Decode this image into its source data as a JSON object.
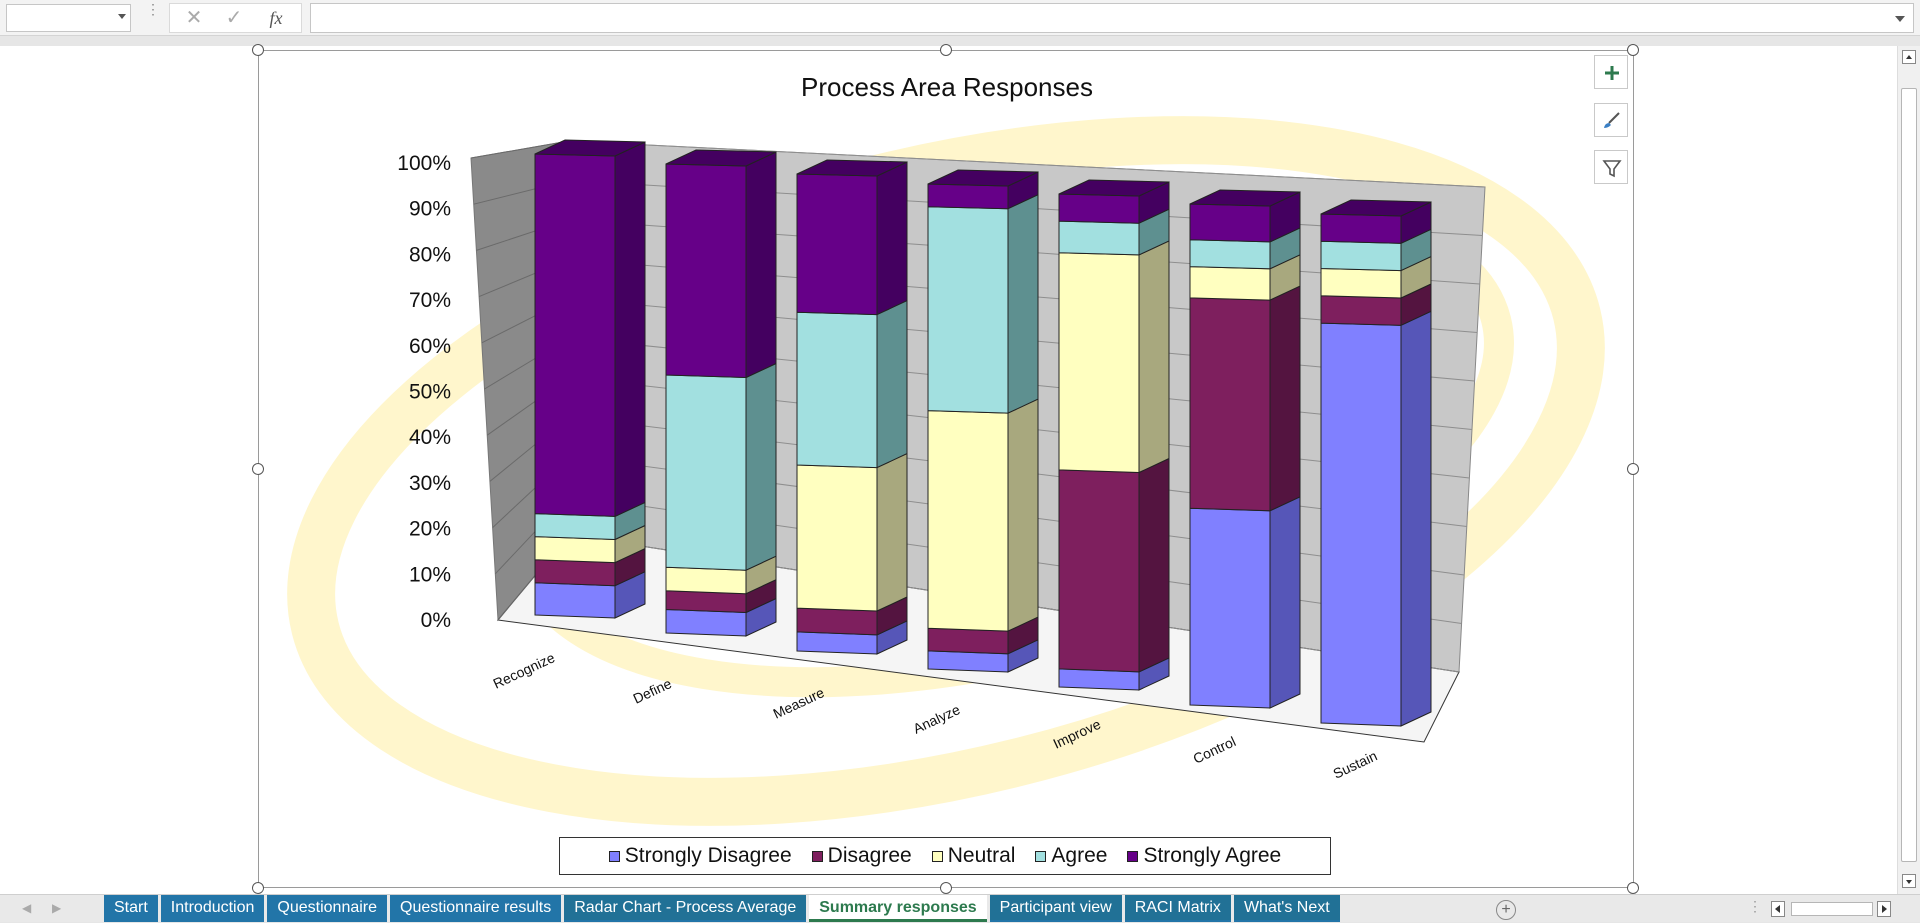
{
  "formula_bar": {
    "name_box_value": "",
    "cancel_icon": "close-icon",
    "enter_icon": "check-icon",
    "fx_label": "fx",
    "formula_value": ""
  },
  "chart_data": {
    "type": "bar",
    "stacked": "percent",
    "style": "3d-column",
    "title": "Process Area Responses",
    "xlabel": "",
    "ylabel": "",
    "ylim": [
      0,
      100
    ],
    "y_ticks": [
      "0%",
      "10%",
      "20%",
      "30%",
      "40%",
      "50%",
      "60%",
      "70%",
      "80%",
      "90%",
      "100%"
    ],
    "categories": [
      "Recognize",
      "Define",
      "Measure",
      "Analyze",
      "Improve",
      "Control",
      "Sustain"
    ],
    "series": [
      {
        "name": "Strongly Disagree",
        "color": "#8080FF",
        "side_color": "#5656B8",
        "values": [
          7,
          5,
          4,
          4,
          4,
          44,
          88
        ]
      },
      {
        "name": "Disagree",
        "color": "#7E1F5E",
        "side_color": "#541440",
        "values": [
          5,
          4,
          5,
          5,
          44,
          47,
          6
        ]
      },
      {
        "name": "Neutral",
        "color": "#FFFFC0",
        "side_color": "#A8A87E",
        "values": [
          5,
          5,
          30,
          48,
          48,
          7,
          6
        ]
      },
      {
        "name": "Agree",
        "color": "#A2E0E0",
        "side_color": "#5E9090",
        "values": [
          5,
          41,
          32,
          45,
          7,
          6,
          6
        ]
      },
      {
        "name": "Strongly Agree",
        "color": "#660088",
        "side_color": "#440060",
        "values": [
          78,
          45,
          29,
          5,
          6,
          8,
          6
        ]
      }
    ],
    "grid": true,
    "legend_position": "bottom"
  },
  "chart_tools": {
    "elements_icon": "plus-icon",
    "styles_icon": "paintbrush-icon",
    "filters_icon": "filter-icon"
  },
  "sheet_tabs": [
    {
      "label": "Start",
      "state": "normal"
    },
    {
      "label": "Introduction",
      "state": "normal"
    },
    {
      "label": "Questionnaire",
      "state": "normal"
    },
    {
      "label": "Questionnaire results",
      "state": "normal"
    },
    {
      "label": "Radar Chart - Process Average",
      "state": "normal"
    },
    {
      "label": "Summary responses",
      "state": "active"
    },
    {
      "label": "Participant view",
      "state": "normal"
    },
    {
      "label": "RACI Matrix",
      "state": "normal"
    },
    {
      "label": "What's Next",
      "state": "normal"
    }
  ],
  "add_sheet_label": "+",
  "colors": {
    "accent_active_tab": "#2D7A4E",
    "tab_background": "#2275A8",
    "swoosh": "#FFF6CC"
  }
}
